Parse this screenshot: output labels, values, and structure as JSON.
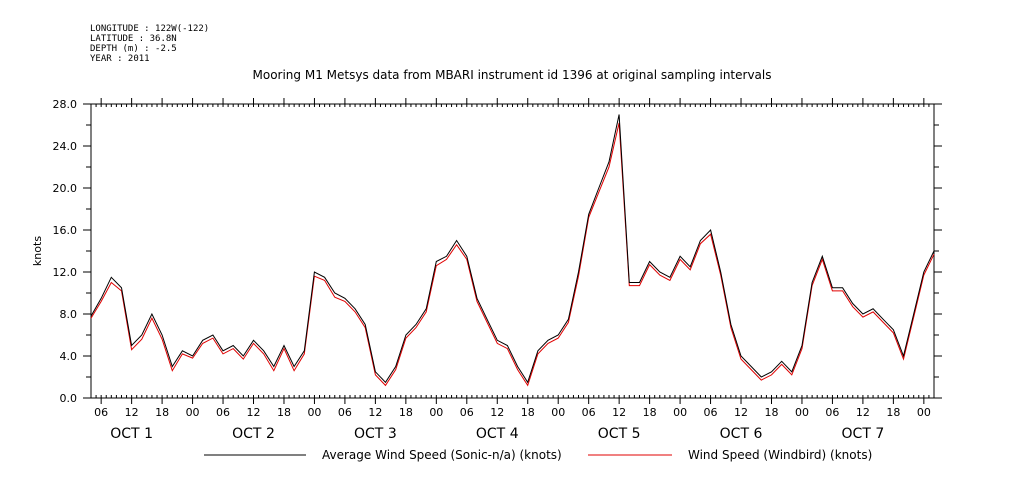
{
  "header": {
    "metadata": [
      "LONGITUDE : 122W(-122)",
      "LATITUDE : 36.8N",
      "DEPTH (m) : -2.5",
      "YEAR : 2011"
    ],
    "title": "Mooring M1 Metsys data from MBARI instrument id 1396 at original sampling intervals"
  },
  "colors": {
    "series_black": "#000000",
    "series_red": "#e00000",
    "axis": "#000000"
  },
  "chart_data": {
    "type": "line",
    "title": "Mooring M1 Metsys data from MBARI instrument id 1396 at original sampling intervals",
    "xlabel": "",
    "ylabel": "knots",
    "ylim": [
      0,
      28
    ],
    "y_ticks": [
      "0.0",
      "4.0",
      "8.0",
      "12.0",
      "16.0",
      "20.0",
      "24.0",
      "28.0"
    ],
    "x_unit": "hours since 2011-10-01 00:00",
    "xlim": [
      4,
      170
    ],
    "x_tick_hours": [
      6,
      12,
      18,
      24,
      30,
      36,
      42,
      48,
      54,
      60,
      66,
      72,
      78,
      84,
      90,
      96,
      102,
      108,
      114,
      120,
      126,
      132,
      138,
      144,
      150,
      156,
      162,
      168
    ],
    "x_tick_labels": [
      "06",
      "12",
      "18",
      "00",
      "06",
      "12",
      "18",
      "00",
      "06",
      "12",
      "18",
      "00",
      "06",
      "12",
      "18",
      "00",
      "06",
      "12",
      "18",
      "00",
      "06",
      "12",
      "18",
      "00",
      "06",
      "12",
      "18",
      "00"
    ],
    "day_labels": [
      {
        "text": "OCT 1",
        "hour": 12
      },
      {
        "text": "OCT 2",
        "hour": 36
      },
      {
        "text": "OCT 3",
        "hour": 60
      },
      {
        "text": "OCT 4",
        "hour": 84
      },
      {
        "text": "OCT 5",
        "hour": 108
      },
      {
        "text": "OCT 6",
        "hour": 132
      },
      {
        "text": "OCT 7",
        "hour": 156
      }
    ],
    "legend_position": "bottom",
    "x": [
      4,
      6,
      8,
      10,
      12,
      14,
      16,
      18,
      20,
      22,
      24,
      26,
      28,
      30,
      32,
      34,
      36,
      38,
      40,
      42,
      44,
      46,
      48,
      50,
      52,
      54,
      56,
      58,
      60,
      62,
      64,
      66,
      68,
      70,
      72,
      74,
      76,
      78,
      80,
      82,
      84,
      86,
      88,
      90,
      92,
      94,
      96,
      98,
      100,
      102,
      104,
      106,
      108,
      110,
      112,
      114,
      116,
      118,
      120,
      122,
      124,
      126,
      128,
      130,
      132,
      134,
      136,
      138,
      140,
      142,
      144,
      146,
      148,
      150,
      152,
      154,
      156,
      158,
      160,
      162,
      164,
      166,
      168,
      170
    ],
    "series": [
      {
        "name": "Average Wind Speed (Sonic-n/a) (knots)",
        "color": "#000000",
        "values": [
          7.8,
          9.5,
          11.5,
          10.5,
          5.0,
          6.0,
          8.0,
          6.0,
          3.0,
          4.5,
          4.0,
          5.5,
          6.0,
          4.5,
          5.0,
          4.0,
          5.5,
          4.5,
          3.0,
          5.0,
          3.0,
          4.5,
          12.0,
          11.5,
          10.0,
          9.5,
          8.5,
          7.0,
          2.5,
          1.5,
          3.0,
          6.0,
          7.0,
          8.5,
          13.0,
          13.5,
          15.0,
          13.5,
          9.5,
          7.5,
          5.5,
          5.0,
          3.0,
          1.5,
          4.5,
          5.5,
          6.0,
          7.5,
          12.0,
          17.5,
          20.0,
          22.5,
          27.0,
          11.0,
          11.0,
          13.0,
          12.0,
          11.5,
          13.5,
          12.5,
          15.0,
          16.0,
          12.0,
          7.0,
          4.0,
          3.0,
          2.0,
          2.5,
          3.5,
          2.5,
          5.0,
          11.0,
          13.5,
          10.5,
          10.5,
          9.0,
          8.0,
          8.5,
          7.5,
          6.5,
          4.0,
          8.0,
          12.0,
          14.0
        ]
      },
      {
        "name": "Wind Speed (Windbird) (knots)",
        "color": "#e00000",
        "values": [
          7.6,
          9.2,
          11.0,
          10.2,
          4.6,
          5.6,
          7.6,
          5.6,
          2.6,
          4.2,
          3.8,
          5.2,
          5.7,
          4.2,
          4.7,
          3.7,
          5.2,
          4.2,
          2.6,
          4.7,
          2.6,
          4.2,
          11.6,
          11.2,
          9.6,
          9.2,
          8.2,
          6.7,
          2.2,
          1.2,
          2.7,
          5.7,
          6.7,
          8.2,
          12.6,
          13.2,
          14.6,
          13.2,
          9.2,
          7.2,
          5.2,
          4.7,
          2.7,
          1.2,
          4.2,
          5.2,
          5.7,
          7.2,
          11.6,
          17.2,
          19.6,
          22.0,
          26.2,
          10.7,
          10.7,
          12.7,
          11.7,
          11.2,
          13.2,
          12.2,
          14.7,
          15.6,
          11.7,
          6.7,
          3.7,
          2.7,
          1.7,
          2.2,
          3.2,
          2.2,
          4.7,
          10.7,
          13.2,
          10.2,
          10.2,
          8.7,
          7.7,
          8.2,
          7.2,
          6.2,
          3.7,
          7.7,
          11.7,
          13.7
        ]
      }
    ]
  }
}
